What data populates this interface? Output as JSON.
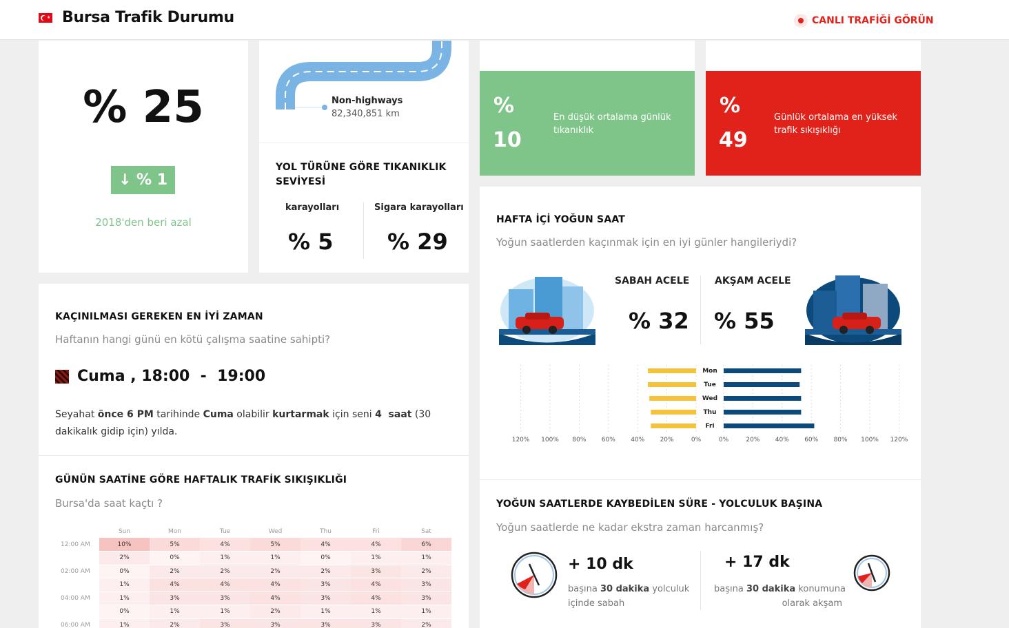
{
  "header": {
    "title": "Bursa Trafik Durumu",
    "live_label": "CANLI TRAFİĞİ GÖRÜN"
  },
  "congestion": {
    "value": "% 25",
    "change": "↓ % 1",
    "note": "2018'den beri azal"
  },
  "road": {
    "label": "Non-highways",
    "distance": "82,340,851 km"
  },
  "road_type": {
    "title_line1": "YOL TÜRÜNE GÖRE TIKANIKLIK",
    "title_line2": "SEVİYESİ",
    "col1_label": "karayolları",
    "col1_value": "% 5",
    "col2_label": "Sigara karayolları",
    "col2_value": "% 29"
  },
  "low_stat": {
    "pct": "%",
    "value": "10",
    "text": "En düşük ortalama günlük tıkanıklık",
    "color": "#7fc58a"
  },
  "high_stat": {
    "pct": "%",
    "value": "49",
    "text": "Günlük ortalama en yüksek trafik sıkışıklığı",
    "color": "#e1221b"
  },
  "best_time": {
    "title": "KAÇINILMASI GEREKEN EN İYİ ZAMAN",
    "subtitle": "Haftanın hangi günü en kötü çalışma saatine sahipti?",
    "day": "Cuma",
    "sep": ",",
    "start": "18:00",
    "dash": "-",
    "end": "19:00",
    "p1": "Seyahat ",
    "b1": "önce 6 PM",
    "p2": " tarihinde ",
    "b2": "Cuma",
    "p3": " olabilir ",
    "b3": "kurtarmak",
    "p4": " için seni ",
    "b4": "4  saat",
    "p5": " (30",
    "line2": "dakikalık gidip için) yılda."
  },
  "weekly": {
    "title": "GÜNÜN SAATİNE GÖRE HAFTALIK TRAFİK SIKIŞIKLIĞI",
    "subtitle": "Bursa'da saat kaçtı ?",
    "days": [
      "Sun",
      "Mon",
      "Tue",
      "Wed",
      "Thu",
      "Fri",
      "Sat"
    ],
    "rows": [
      {
        "time": "12:00 AM",
        "vals": [
          "10%",
          "5%",
          "4%",
          "5%",
          "4%",
          "4%",
          "6%"
        ]
      },
      {
        "time": "",
        "vals": [
          "2%",
          "0%",
          "1%",
          "1%",
          "0%",
          "1%",
          "1%"
        ]
      },
      {
        "time": "02:00 AM",
        "vals": [
          "0%",
          "2%",
          "2%",
          "2%",
          "2%",
          "3%",
          "2%"
        ]
      },
      {
        "time": "",
        "vals": [
          "1%",
          "4%",
          "4%",
          "4%",
          "3%",
          "4%",
          "3%"
        ]
      },
      {
        "time": "04:00 AM",
        "vals": [
          "1%",
          "3%",
          "3%",
          "4%",
          "3%",
          "4%",
          "3%"
        ]
      },
      {
        "time": "",
        "vals": [
          "0%",
          "1%",
          "1%",
          "2%",
          "1%",
          "1%",
          "1%"
        ]
      },
      {
        "time": "06:00 AM",
        "vals": [
          "1%",
          "2%",
          "3%",
          "3%",
          "3%",
          "3%",
          "2%"
        ]
      }
    ]
  },
  "rush": {
    "title": "HAFTA İÇİ YOĞUN SAAT",
    "subtitle": "Yoğun saatlerden kaçınmak için en iyi günler hangileriydi?",
    "morning_label": "SABAH ACELE",
    "morning_value": "% 32",
    "evening_label": "AKŞAM ACELE",
    "evening_value": "% 55"
  },
  "chart_data": {
    "type": "bar",
    "categories": [
      "Mon",
      "Tue",
      "Wed",
      "Thu",
      "Fri"
    ],
    "series": [
      {
        "values": [
          33,
          33,
          32,
          31,
          31
        ],
        "color": "#f5c33b"
      },
      {
        "values": [
          53,
          52,
          53,
          53,
          62
        ],
        "color": "#0d4a7c"
      }
    ],
    "left_ticks": [
      "120%",
      "100%",
      "80%",
      "60%",
      "40%",
      "20%",
      "0%"
    ],
    "right_ticks": [
      "0%",
      "20%",
      "40%",
      "60%",
      "80%",
      "100%",
      "120%"
    ],
    "xlim": [
      0,
      120
    ]
  },
  "lost_time": {
    "title": "YOĞUN SAATLERDE KAYBEDİLEN SÜRE - YOLCULUK BAŞINA",
    "subtitle": "Yoğun saatlerde ne kadar ekstra zaman harcanmış?",
    "morning_value": "+ 10 dk",
    "morning_p1": "başına ",
    "morning_b": "30 dakika",
    "morning_p2": " yolculuk",
    "morning_line2": "içinde sabah",
    "evening_value": "+ 17 dk",
    "evening_p1": "başına ",
    "evening_b": "30 dakika",
    "evening_p2": " konumuna",
    "evening_line2": "olarak akşam"
  }
}
